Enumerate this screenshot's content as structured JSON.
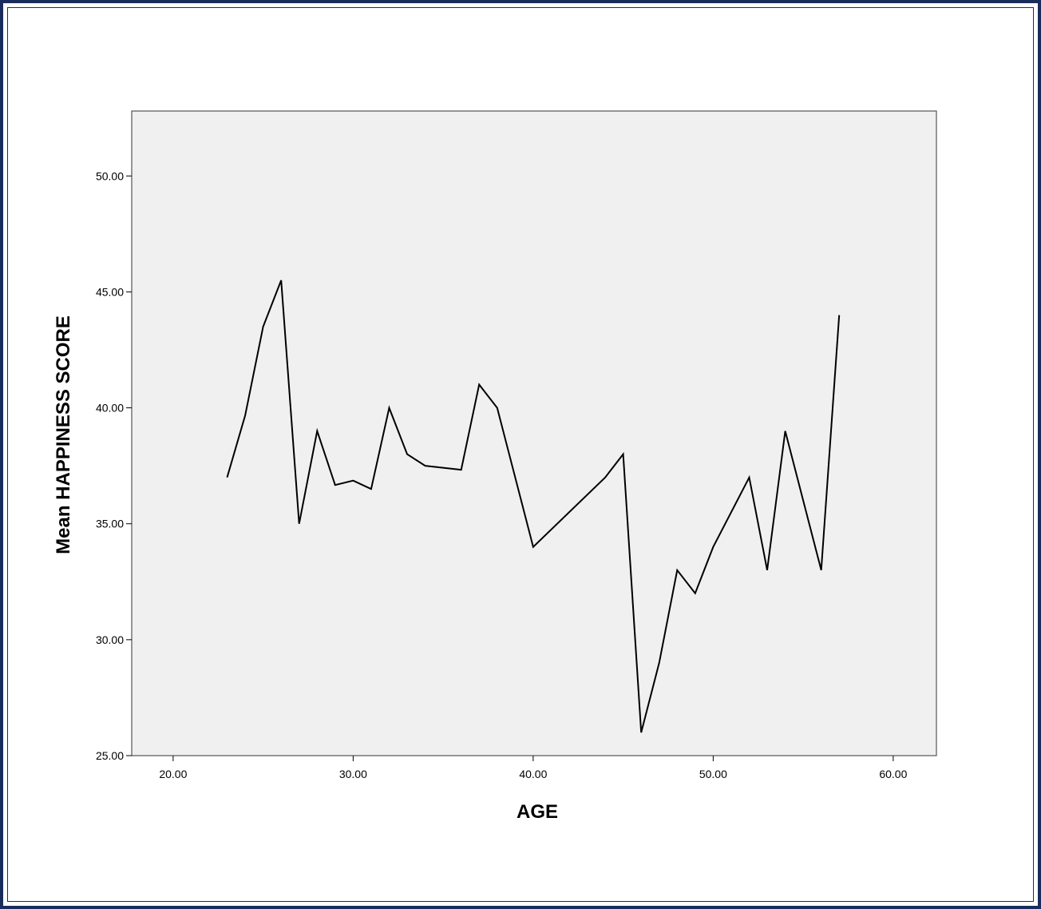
{
  "chart_data": {
    "type": "line",
    "xlabel": "AGE",
    "ylabel": "Mean HAPPINESS SCORE",
    "xlim": [
      17.7,
      62.4
    ],
    "ylim": [
      25.0,
      52.8
    ],
    "x_ticks": [
      "20.00",
      "30.00",
      "40.00",
      "50.00",
      "60.00"
    ],
    "y_ticks": [
      "25.00",
      "30.00",
      "35.00",
      "40.00",
      "45.00",
      "50.00"
    ],
    "grid": false,
    "background_color": "#f0f0f0",
    "line_color": "#000000",
    "series": [
      {
        "x": [
          23,
          24,
          25,
          26,
          27,
          28,
          29,
          30,
          31,
          32,
          33,
          34,
          36,
          37,
          38,
          40,
          44,
          45,
          46,
          47,
          48,
          49,
          50,
          52,
          53,
          54,
          56,
          57
        ],
        "y": [
          37.0,
          39.67,
          43.5,
          45.5,
          35.0,
          39.0,
          36.67,
          36.86,
          36.5,
          40.0,
          38.0,
          37.5,
          37.33,
          41.0,
          40.0,
          34.0,
          37.0,
          38.0,
          26.0,
          29.0,
          33.0,
          32.0,
          34.0,
          37.0,
          33.0,
          39.0,
          33.0,
          44.0
        ]
      }
    ]
  }
}
